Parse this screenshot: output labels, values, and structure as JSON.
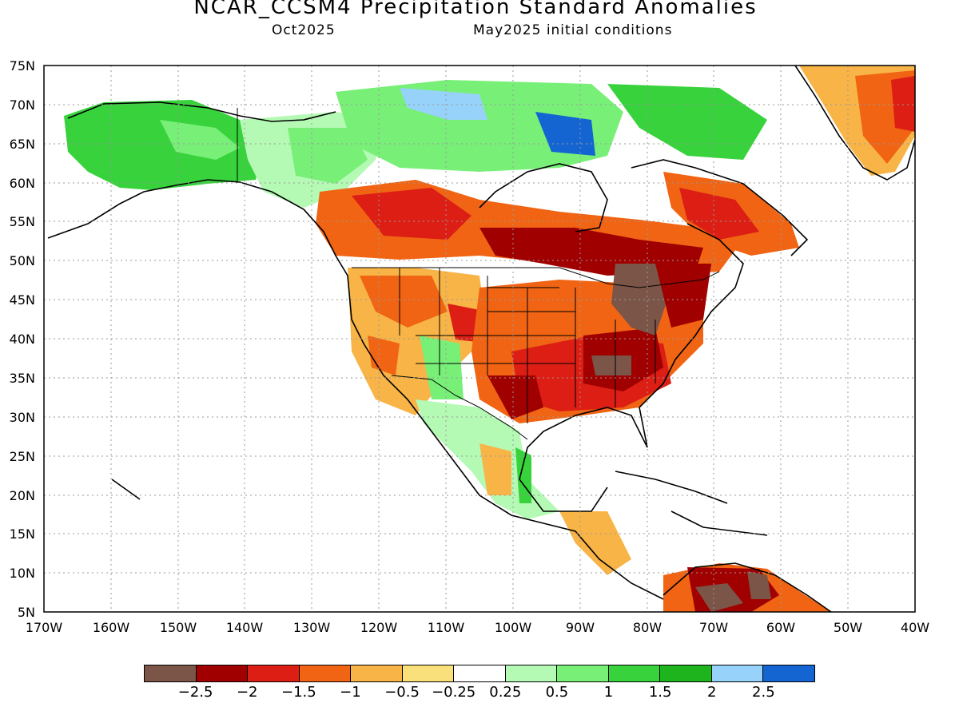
{
  "title": "NCAR_CCSM4 Precipitation Standard Anomalies",
  "subtitle_left": "Oct2025",
  "subtitle_right": "May2025 initial conditions",
  "lat_labels": [
    "75N",
    "70N",
    "65N",
    "60N",
    "55N",
    "50N",
    "45N",
    "40N",
    "35N",
    "30N",
    "25N",
    "20N",
    "15N",
    "10N",
    "5N"
  ],
  "lon_labels": [
    "170W",
    "160W",
    "150W",
    "140W",
    "130W",
    "120W",
    "110W",
    "100W",
    "90W",
    "80W",
    "70W",
    "60W",
    "50W",
    "40W"
  ],
  "colorbar": {
    "colors": [
      "#7a5548",
      "#a00000",
      "#dc1e14",
      "#f06414",
      "#f8b446",
      "#fae07a",
      "#ffffff",
      "#b4fab4",
      "#78f078",
      "#37d23c",
      "#1eb41e",
      "#96d2fa",
      "#1464d2"
    ],
    "labels": [
      "−2.5",
      "−2",
      "−1.5",
      "−1",
      "−0.5",
      "−0.25",
      "0.25",
      "0.5",
      "1",
      "1.5",
      "2",
      "2.5"
    ]
  }
}
